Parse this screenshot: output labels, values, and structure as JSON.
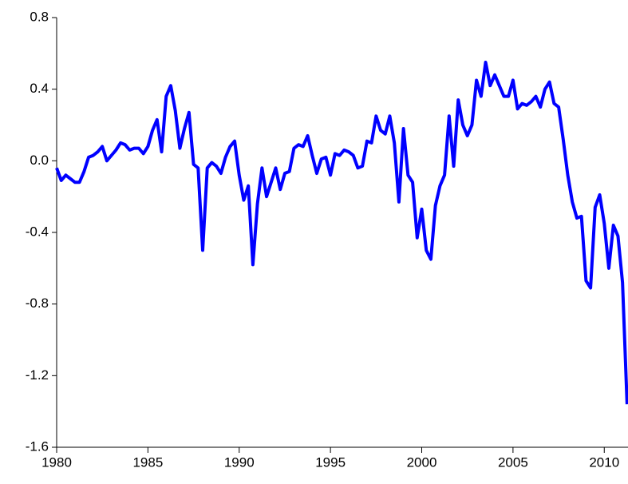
{
  "chart_data": {
    "type": "line",
    "x": [
      1980,
      1980.25,
      1980.5,
      1980.75,
      1981,
      1981.25,
      1981.5,
      1981.75,
      1982,
      1982.25,
      1982.5,
      1982.75,
      1983,
      1983.25,
      1983.5,
      1983.75,
      1984,
      1984.25,
      1984.5,
      1984.75,
      1985,
      1985.25,
      1985.5,
      1985.75,
      1986,
      1986.25,
      1986.5,
      1986.75,
      1987,
      1987.25,
      1987.5,
      1987.75,
      1988,
      1988.25,
      1988.5,
      1988.75,
      1989,
      1989.25,
      1989.5,
      1989.75,
      1990,
      1990.25,
      1990.5,
      1990.75,
      1991,
      1991.25,
      1991.5,
      1991.75,
      1992,
      1992.25,
      1992.5,
      1992.75,
      1993,
      1993.25,
      1993.5,
      1993.75,
      1994,
      1994.25,
      1994.5,
      1994.75,
      1995,
      1995.25,
      1995.5,
      1995.75,
      1996,
      1996.25,
      1996.5,
      1996.75,
      1997,
      1997.25,
      1997.5,
      1997.75,
      1998,
      1998.25,
      1998.5,
      1998.75,
      1999,
      1999.25,
      1999.5,
      1999.75,
      2000,
      2000.25,
      2000.5,
      2000.75,
      2001,
      2001.25,
      2001.5,
      2001.75,
      2002,
      2002.25,
      2002.5,
      2002.75,
      2003,
      2003.25,
      2003.5,
      2003.75,
      2004,
      2004.25,
      2004.5,
      2004.75,
      2005,
      2005.25,
      2005.5,
      2005.75,
      2006,
      2006.25,
      2006.5,
      2006.75,
      2007,
      2007.25,
      2007.5,
      2007.75,
      2008,
      2008.25,
      2008.5,
      2008.75,
      2009,
      2009.25,
      2009.5,
      2009.75,
      2010,
      2010.25,
      2010.5,
      2010.75,
      2011,
      2011.25
    ],
    "series": [
      {
        "color": "#0000ff",
        "values": [
          -0.04,
          -0.11,
          -0.08,
          -0.1,
          -0.12,
          -0.12,
          -0.06,
          0.02,
          0.03,
          0.05,
          0.08,
          0.0,
          0.03,
          0.06,
          0.1,
          0.09,
          0.06,
          0.07,
          0.07,
          0.04,
          0.08,
          0.17,
          0.23,
          0.05,
          0.36,
          0.42,
          0.28,
          0.07,
          0.18,
          0.27,
          -0.02,
          -0.04,
          -0.5,
          -0.04,
          -0.01,
          -0.03,
          -0.07,
          0.02,
          0.08,
          0.11,
          -0.08,
          -0.22,
          -0.14,
          -0.58,
          -0.24,
          -0.04,
          -0.2,
          -0.12,
          -0.04,
          -0.16,
          -0.07,
          -0.06,
          0.07,
          0.09,
          0.08,
          0.14,
          0.03,
          -0.07,
          0.01,
          0.02,
          -0.08,
          0.04,
          0.03,
          0.06,
          0.05,
          0.03,
          -0.04,
          -0.03,
          0.11,
          0.1,
          0.25,
          0.17,
          0.15,
          0.25,
          0.1,
          -0.23,
          0.18,
          -0.08,
          -0.12,
          -0.43,
          -0.27,
          -0.5,
          -0.55,
          -0.25,
          -0.14,
          -0.08,
          0.25,
          -0.03,
          0.34,
          0.2,
          0.14,
          0.2,
          0.45,
          0.36,
          0.55,
          0.42,
          0.48,
          0.42,
          0.36,
          0.36,
          0.45,
          0.29,
          0.32,
          0.31,
          0.33,
          0.36,
          0.3,
          0.4,
          0.44,
          0.32,
          0.3,
          0.12,
          -0.08,
          -0.23,
          -0.32,
          -0.31,
          -0.67,
          -0.71,
          -0.26,
          -0.19,
          -0.35,
          -0.6,
          -0.36,
          -0.42,
          -0.68,
          -1.36
        ]
      }
    ],
    "xlim": [
      1980,
      2011.3
    ],
    "xticks": [
      1980,
      1985,
      1990,
      1995,
      2000,
      2005,
      2010
    ],
    "ylim": [
      -1.6,
      0.8
    ],
    "yticks": [
      0.8,
      0.4,
      {
        "value": 0,
        "label": "0.0"
      },
      -0.4,
      -0.8,
      -1.2,
      -1.6
    ]
  }
}
